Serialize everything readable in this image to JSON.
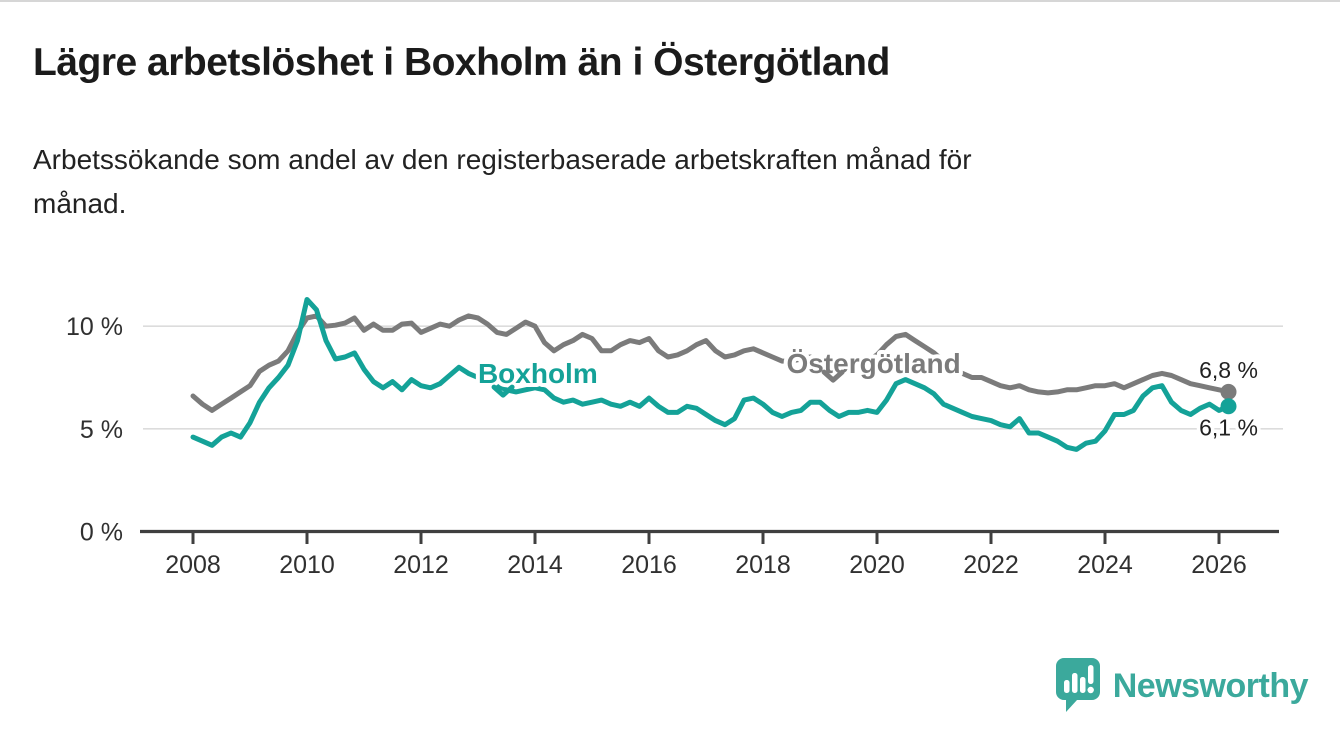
{
  "header": {
    "title": "Lägre arbetslöshet i Boxholm än i Östergötland",
    "subtitle_lines": [
      "Arbetssökande som andel av den registerbaserade arbetskraften månad för",
      "månad."
    ]
  },
  "chart_data": {
    "type": "line",
    "title": "Lägre arbetslöshet i Boxholm än i Östergötland",
    "subtitle": "Arbetssökande som andel av den registerbaserade arbetskraften månad för månad.",
    "xlabel": "",
    "ylabel": "",
    "x_unit": "year",
    "x_start": 2008.0,
    "x_step_years": 0.166667,
    "xlim": [
      2007.05,
      2027.1
    ],
    "ylim": [
      0,
      11.8
    ],
    "grid": "horizontal",
    "x_ticks": [
      2008,
      2010,
      2012,
      2014,
      2016,
      2018,
      2020,
      2022,
      2024,
      2026
    ],
    "y_ticks": [
      {
        "value": 0,
        "label": "0 %"
      },
      {
        "value": 5,
        "label": "5 %"
      },
      {
        "value": 10,
        "label": "10 %"
      }
    ],
    "colors": {
      "grid": "#dcdcdc",
      "axis": "#3f3f3f",
      "tick_text": "#303030",
      "end_label_text": "#222222"
    },
    "series": [
      {
        "name": "Östergötland",
        "color": "#7b7b7b",
        "end_label": "6,8 %",
        "end_label_position": "above",
        "label_anchor": {
          "year": 2019.94,
          "pct": 8.21
        },
        "pointer_anchor": {
          "year": 2019.23,
          "pct": 7.57
        },
        "values": [
          6.6,
          6.2,
          5.9,
          6.2,
          6.5,
          6.8,
          7.1,
          7.8,
          8.1,
          8.3,
          8.8,
          9.7,
          10.4,
          10.5,
          10.0,
          10.05,
          10.15,
          10.4,
          9.8,
          10.1,
          9.8,
          9.8,
          10.1,
          10.15,
          9.7,
          9.9,
          10.1,
          10.0,
          10.3,
          10.5,
          10.4,
          10.1,
          9.7,
          9.6,
          9.9,
          10.2,
          10.0,
          9.2,
          8.8,
          9.1,
          9.3,
          9.6,
          9.4,
          8.8,
          8.8,
          9.1,
          9.3,
          9.2,
          9.4,
          8.8,
          8.5,
          8.6,
          8.8,
          9.1,
          9.3,
          8.8,
          8.5,
          8.6,
          8.8,
          8.9,
          8.7,
          8.5,
          8.3,
          8.3,
          8.4,
          8.5,
          8.3,
          8.0,
          7.9,
          7.9,
          8.0,
          8.3,
          8.6,
          9.1,
          9.5,
          9.6,
          9.3,
          9.0,
          8.7,
          8.3,
          7.9,
          7.7,
          7.5,
          7.5,
          7.3,
          7.1,
          7.0,
          7.1,
          6.9,
          6.8,
          6.75,
          6.8,
          6.9,
          6.9,
          7.0,
          7.1,
          7.1,
          7.2,
          7.0,
          7.2,
          7.4,
          7.6,
          7.7,
          7.6,
          7.4,
          7.2,
          7.1,
          7.0,
          6.9,
          6.8
        ]
      },
      {
        "name": "Boxholm",
        "color": "#14a298",
        "end_label": "6,1 %",
        "end_label_position": "below",
        "label_anchor": {
          "year": 2014.05,
          "pct": 7.72
        },
        "pointer_anchor": {
          "year": 2013.44,
          "pct": 6.84
        },
        "values": [
          4.6,
          4.4,
          4.2,
          4.6,
          4.8,
          4.6,
          5.3,
          6.3,
          7.0,
          7.5,
          8.1,
          9.3,
          11.3,
          10.8,
          9.3,
          8.4,
          8.5,
          8.7,
          7.9,
          7.3,
          7.0,
          7.3,
          6.9,
          7.4,
          7.1,
          7.0,
          7.2,
          7.6,
          8.0,
          7.7,
          7.5,
          7.3,
          7.1,
          6.9,
          6.8,
          6.9,
          7.0,
          6.9,
          6.5,
          6.3,
          6.4,
          6.2,
          6.3,
          6.4,
          6.2,
          6.1,
          6.3,
          6.1,
          6.5,
          6.1,
          5.8,
          5.8,
          6.1,
          6.0,
          5.7,
          5.4,
          5.2,
          5.5,
          6.4,
          6.5,
          6.2,
          5.8,
          5.6,
          5.8,
          5.9,
          6.3,
          6.3,
          5.9,
          5.6,
          5.8,
          5.8,
          5.9,
          5.8,
          6.4,
          7.2,
          7.4,
          7.2,
          7.0,
          6.7,
          6.2,
          6.0,
          5.8,
          5.6,
          5.5,
          5.4,
          5.2,
          5.1,
          5.5,
          4.8,
          4.8,
          4.6,
          4.4,
          4.1,
          4.0,
          4.3,
          4.4,
          4.9,
          5.7,
          5.7,
          5.9,
          6.6,
          7.0,
          7.1,
          6.3,
          5.9,
          5.7,
          6.0,
          6.2,
          5.9,
          6.1
        ]
      }
    ]
  },
  "branding": {
    "wordmark": "Newsworthy",
    "color": "#3ba99c"
  }
}
